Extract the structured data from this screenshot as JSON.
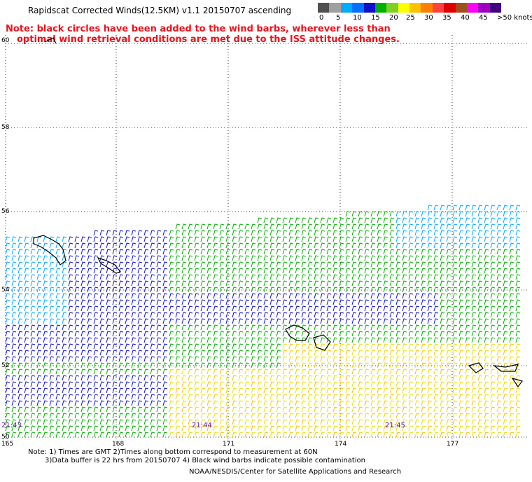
{
  "title": "Rapidscat Corrected Winds(12.5KM) v1.1 20150707 ascending",
  "note_line1": "Note: black circles have been added to the wind barbs, wherever less than",
  "note_line2": "optimal wind retrieval conditions are met due to the ISS attitude changes.",
  "color_scale": {
    "units_label": ">50 knots",
    "labels": [
      "0",
      "5",
      "10",
      "15",
      "20",
      "25",
      "30",
      "35",
      "40",
      "45"
    ],
    "colors": [
      "#505050",
      "#a0a0a0",
      "#00aaff",
      "#0070ff",
      "#1010c8",
      "#00b000",
      "#80d020",
      "#ffff00",
      "#ffc000",
      "#ff8000",
      "#ff4040",
      "#e00000",
      "#a05020",
      "#ff00ff",
      "#a000c0",
      "#400080"
    ]
  },
  "latitude_labels": [
    "60",
    "58",
    "56",
    "54",
    "52",
    "50"
  ],
  "longitude_labels": [
    "165",
    "168",
    "171",
    "174",
    "177"
  ],
  "time_labels": [
    "21:43",
    "21:44",
    "21:45"
  ],
  "footnote_line1": "Note: 1) Times are GMT 2)Times along bottom correspond to measurement at 60N",
  "footnote_line2": "3)Data buffer is 22 hrs from 20150707 4) Black wind barbs indicate possible contamination",
  "credit": "NOAA/NESDIS/Center for Satellite Applications and Research",
  "map": {
    "wind_speed_bands_knots": {
      "north_west": "10-15",
      "central": "15-20",
      "south": "20-30",
      "south_east": "25-30"
    }
  }
}
